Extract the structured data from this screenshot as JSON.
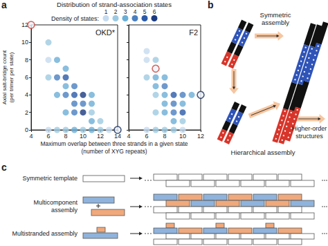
{
  "panel_labels": [
    "a",
    "b",
    "c"
  ],
  "panel_a": {
    "title": "Distribution of strand-association states",
    "density_legend": {
      "label": "Density of states:",
      "levels": [
        1,
        2,
        3,
        4,
        5,
        6
      ],
      "colors": [
        "#c6dbef",
        "#9ecae1",
        "#6baed6",
        "#4a7fc0",
        "#2b5aa8",
        "#1a3a80"
      ]
    },
    "y_label": [
      "Axial salt-bridge count",
      "(per trimer per state)"
    ],
    "x_label": [
      "Maximum overlap between three strands in a given state",
      "(number of XYG repeats)"
    ]
  },
  "chart_data": [
    {
      "type": "scatter",
      "title": "OKD*",
      "xlim": [
        4,
        14
      ],
      "xticks": [
        4,
        6,
        8,
        10,
        12,
        14
      ],
      "ylim": [
        0,
        12
      ],
      "yticks": [
        0,
        2,
        4,
        6,
        8,
        10,
        12
      ],
      "points": {
        "x": [
          6,
          6,
          7,
          8,
          6,
          7,
          8,
          8,
          9,
          7,
          8,
          9,
          10,
          11,
          9,
          10,
          11,
          8,
          9,
          10,
          11,
          11,
          12,
          6,
          7,
          8,
          9,
          10,
          11,
          12,
          13
        ],
        "y": [
          10,
          8,
          8,
          7,
          6,
          6,
          6,
          5,
          5,
          4,
          4,
          4,
          4,
          4,
          3,
          3,
          3,
          2,
          2,
          2,
          2,
          1,
          1,
          0,
          0,
          0,
          0,
          0,
          0,
          0,
          0
        ],
        "density": [
          2,
          1,
          3,
          3,
          2,
          4,
          5,
          3,
          4,
          3,
          4,
          5,
          6,
          3,
          4,
          4,
          3,
          3,
          4,
          6,
          2,
          3,
          2,
          1,
          2,
          2,
          3,
          2,
          3,
          2,
          1
        ]
      },
      "highlighted": [
        {
          "x": 4,
          "y": 12,
          "color": "#c8453b"
        },
        {
          "x": 14,
          "y": 0,
          "color": "#1a2e5a"
        }
      ]
    },
    {
      "type": "scatter",
      "title": "F2",
      "xlim": [
        4,
        12
      ],
      "xticks": [
        4,
        6,
        8,
        10,
        12
      ],
      "ylim": [
        0,
        12
      ],
      "yticks": [
        0,
        2,
        4,
        6,
        8,
        10,
        12
      ],
      "tick_labels": "x",
      "points": {
        "x": [
          6,
          6,
          7,
          6,
          7,
          8,
          7,
          8,
          7,
          8,
          9,
          10,
          11,
          8,
          9,
          10,
          7,
          8,
          9,
          10,
          9,
          10,
          6,
          7,
          8,
          9,
          10
        ],
        "y": [
          9,
          8,
          8,
          6,
          6,
          6,
          5,
          5,
          4,
          4,
          4,
          4,
          4,
          3,
          3,
          3,
          2,
          2,
          2,
          2,
          1,
          1,
          0,
          0,
          0,
          0,
          0
        ],
        "density": [
          1,
          1,
          2,
          2,
          3,
          3,
          3,
          4,
          2,
          3,
          5,
          4,
          3,
          3,
          4,
          3,
          2,
          3,
          4,
          5,
          3,
          2,
          1,
          2,
          2,
          2,
          1
        ]
      },
      "highlighted": [
        {
          "x": 7,
          "y": 7,
          "color": "#c8453b"
        },
        {
          "x": 12,
          "y": 4,
          "color": "#1a2e5a"
        }
      ]
    }
  ],
  "panel_b": {
    "symmetric": [
      "Symmetric",
      "assembly"
    ],
    "hierarchical": [
      "Hierarchical assembly"
    ],
    "higher_order": [
      "Higher-order",
      "structures"
    ]
  },
  "panel_c": {
    "rows": [
      {
        "label": [
          "Symmetric template"
        ]
      },
      {
        "label": [
          "Multicomponent",
          "assembly"
        ]
      },
      {
        "label": [
          "Multistranded assembly"
        ]
      }
    ]
  }
}
